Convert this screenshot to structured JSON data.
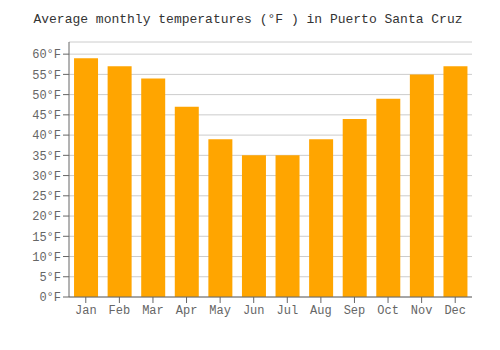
{
  "chart_data": {
    "type": "bar",
    "title": "Average monthly temperatures (°F ) in Puerto Santa Cruz",
    "categories": [
      "Jan",
      "Feb",
      "Mar",
      "Apr",
      "May",
      "Jun",
      "Jul",
      "Aug",
      "Sep",
      "Oct",
      "Nov",
      "Dec"
    ],
    "values": [
      59,
      57,
      54,
      47,
      39,
      35,
      35,
      39,
      44,
      49,
      55,
      57
    ],
    "color": "#FFA500",
    "ylim": [
      0,
      63
    ],
    "yticks": [
      {
        "value": 0,
        "label": "0°F"
      },
      {
        "value": 5,
        "label": "5°F"
      },
      {
        "value": 10,
        "label": "10°F"
      },
      {
        "value": 15,
        "label": "15°F"
      },
      {
        "value": 20,
        "label": "20°F"
      },
      {
        "value": 25,
        "label": "25°F"
      },
      {
        "value": 30,
        "label": "30°F"
      },
      {
        "value": 35,
        "label": "35°F"
      },
      {
        "value": 40,
        "label": "40°F"
      },
      {
        "value": 45,
        "label": "45°F"
      },
      {
        "value": 50,
        "label": "50°F"
      },
      {
        "value": 55,
        "label": "55°F"
      },
      {
        "value": 60,
        "label": "60°F"
      }
    ],
    "grid": true
  }
}
